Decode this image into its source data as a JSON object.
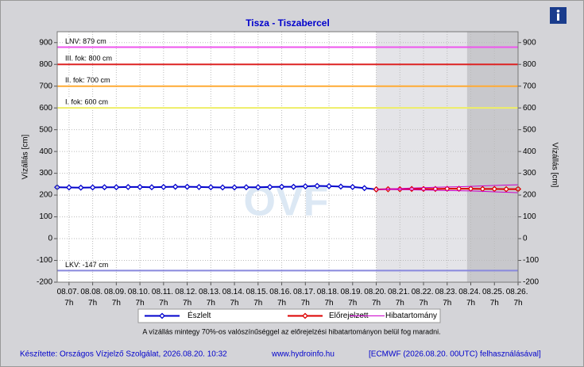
{
  "chart_data": {
    "type": "line",
    "title": "Tisza - Tiszabercel",
    "ylabel": "Vízállás [cm]",
    "y2label": "Vízállás [cm]",
    "watermark": "OVF",
    "x": [
      6.79,
      7.29,
      7.79,
      8.29,
      8.79,
      9.29,
      9.79,
      10.29,
      10.79,
      11.29,
      11.79,
      12.29,
      12.79,
      13.29,
      13.79,
      14.29,
      14.79,
      15.29,
      15.79,
      16.29,
      16.79,
      17.29,
      17.79,
      18.29,
      18.79,
      19.29,
      19.79,
      20.29,
      20.79,
      21.29,
      21.79,
      22.29,
      22.79,
      23.29,
      23.79,
      24.29,
      24.79,
      25.29,
      25.79,
      26.29,
      26.29
    ],
    "xlim": [
      6.79,
      26.29
    ],
    "xticks": [
      {
        "value": 7.29,
        "label": "08.07. 7h"
      },
      {
        "value": 8.29,
        "label": "08.08. 7h"
      },
      {
        "value": 9.29,
        "label": "08.09. 7h"
      },
      {
        "value": 10.29,
        "label": "08.10. 7h"
      },
      {
        "value": 11.29,
        "label": "08.11. 7h"
      },
      {
        "value": 12.29,
        "label": "08.12. 7h"
      },
      {
        "value": 13.29,
        "label": "08.13. 7h"
      },
      {
        "value": 14.29,
        "label": "08.14. 7h"
      },
      {
        "value": 15.29,
        "label": "08.15. 7h"
      },
      {
        "value": 16.29,
        "label": "08.16. 7h"
      },
      {
        "value": 17.29,
        "label": "08.17. 7h"
      },
      {
        "value": 18.29,
        "label": "08.18. 7h"
      },
      {
        "value": 19.29,
        "label": "08.19. 7h"
      },
      {
        "value": 20.29,
        "label": "08.20. 7h"
      },
      {
        "value": 21.29,
        "label": "08.21. 7h"
      },
      {
        "value": 22.29,
        "label": "08.22. 7h"
      },
      {
        "value": 23.29,
        "label": "08.23. 7h"
      },
      {
        "value": 24.29,
        "label": "08.24. 7h"
      },
      {
        "value": 25.29,
        "label": "08.25. 7h"
      },
      {
        "value": 26.29,
        "label": "08.26. 7h"
      }
    ],
    "ylim": [
      -200,
      950
    ],
    "yticks": [
      -200,
      -100,
      0,
      100,
      200,
      300,
      400,
      500,
      600,
      700,
      800,
      900
    ],
    "y2lim": [
      -200,
      950
    ],
    "y2ticks": [
      -200,
      -100,
      0,
      100,
      200,
      300,
      400,
      500,
      600,
      700,
      800,
      900
    ],
    "grid": true,
    "shaded_regions": [
      {
        "from": 20.29,
        "to": 24.13,
        "color": "#e4e4e8"
      },
      {
        "from": 24.13,
        "to": 26.29,
        "color": "#c8c8cc"
      }
    ],
    "thresholds": [
      {
        "value": 879,
        "label": "LNV: 879 cm",
        "color": "#ee55ee"
      },
      {
        "value": 800,
        "label": "III. fok: 800 cm",
        "color": "#dd2222"
      },
      {
        "value": 700,
        "label": "II. fok: 700 cm",
        "color": "#ffaa33"
      },
      {
        "value": 600,
        "label": "I. fok: 600 cm",
        "color": "#eeee66"
      },
      {
        "value": -147,
        "label": "LKV: -147 cm",
        "color": "#8888dd"
      }
    ],
    "series": [
      {
        "name": "Észlelt",
        "color": "#0000cc",
        "values": [
          236,
          235,
          234,
          235,
          236,
          236,
          237,
          237,
          236,
          237,
          238,
          238,
          237,
          236,
          235,
          235,
          236,
          236,
          237,
          238,
          238,
          240,
          242,
          241,
          239,
          237,
          232,
          226,
          null,
          null,
          null,
          null,
          null,
          null,
          null,
          null,
          null,
          null,
          null,
          null,
          null
        ]
      },
      {
        "name": "Előrejelzett",
        "color": "#dd0000",
        "values": [
          null,
          null,
          null,
          null,
          null,
          null,
          null,
          null,
          null,
          null,
          null,
          null,
          null,
          null,
          null,
          null,
          null,
          null,
          null,
          null,
          null,
          null,
          null,
          null,
          null,
          null,
          null,
          226,
          227,
          227,
          228,
          228,
          228,
          229,
          229,
          229,
          228,
          228,
          227,
          227,
          228
        ]
      },
      {
        "name": "Hibatartomány",
        "color": "#cc00cc",
        "values": [
          null,
          null,
          null,
          null,
          null,
          null,
          null,
          null,
          null,
          null,
          null,
          null,
          null,
          null,
          null,
          null,
          null,
          null,
          null,
          null,
          null,
          null,
          null,
          null,
          null,
          null,
          null,
          226,
          228,
          230,
          232,
          234,
          236,
          237,
          238,
          240,
          242,
          244,
          246,
          247,
          248
        ],
        "lower": [
          null,
          null,
          null,
          null,
          null,
          null,
          null,
          null,
          null,
          null,
          null,
          null,
          null,
          null,
          null,
          null,
          null,
          null,
          null,
          null,
          null,
          null,
          null,
          null,
          null,
          null,
          null,
          226,
          226,
          225,
          224,
          223,
          222,
          221,
          220,
          219,
          217,
          215,
          213,
          211,
          209
        ]
      }
    ],
    "note": "A vízállás mintegy 70%-os valószínűséggel az előrejelzési hibatartományon belül fog maradni.",
    "footer": {
      "left": "Készítette: Országos Vízjelző Szolgálat, 2026.08.20. 10:32",
      "center": "www.hydroinfo.hu",
      "right": "[ECMWF (2026.08.20. 00UTC) felhasználásával]"
    }
  }
}
